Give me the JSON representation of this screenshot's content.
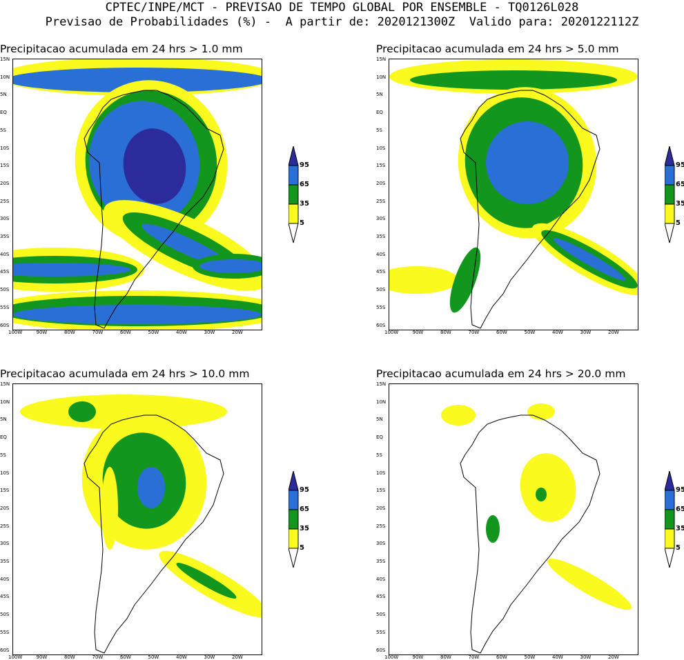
{
  "header": {
    "line1": "CPTEC/INPE/MCT - PREVISAO DE TEMPO GLOBAL POR ENSEMBLE - TQ0126L028",
    "line2": "Previsao de Probabilidades (%) -  A partir de: 2020121300Z  Valido para: 2020122112Z"
  },
  "panels": [
    {
      "title": "Precipitacao acumulada em 24 hrs > 1.0 mm"
    },
    {
      "title": "Precipitacao acumulada em 24 hrs > 5.0 mm"
    },
    {
      "title": "Precipitacao acumulada em 24 hrs > 10.0 mm"
    },
    {
      "title": "Precipitacao acumulada em 24 hrs > 20.0 mm"
    }
  ],
  "lat_labels": [
    "15N",
    "10N",
    "5N",
    "EQ",
    "5S",
    "10S",
    "15S",
    "20S",
    "25S",
    "30S",
    "35S",
    "40S",
    "45S",
    "50S",
    "55S",
    "60S"
  ],
  "lon_labels": [
    "100W",
    "90W",
    "80W",
    "70W",
    "60W",
    "50W",
    "40W",
    "30W",
    "20W"
  ],
  "colorbar": {
    "labels": [
      "95",
      "65",
      "35",
      "5"
    ],
    "colors": {
      "c95": "#2b2b9b",
      "c65": "#2a6fd6",
      "c35": "#12961e",
      "c5": "#fafa1e"
    }
  }
}
